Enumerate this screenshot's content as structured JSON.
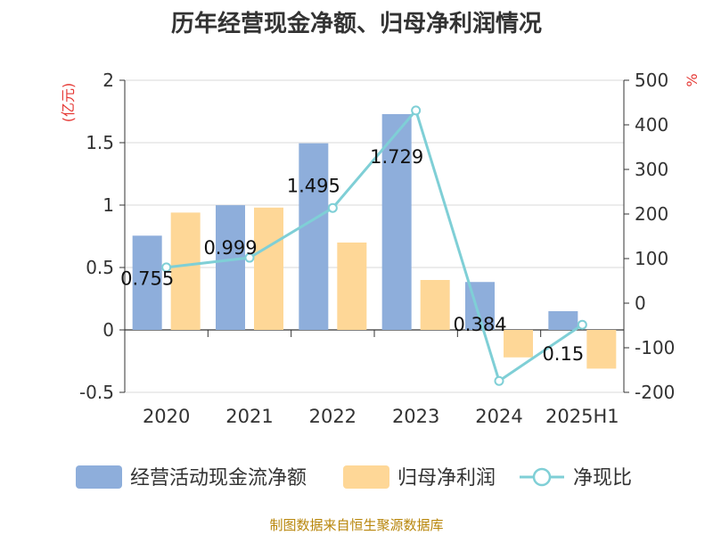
{
  "chart_data": {
    "type": "bar",
    "title": "历年经营现金净额、归母净利润情况",
    "categories": [
      "2020",
      "2021",
      "2022",
      "2023",
      "2024",
      "2025H1"
    ],
    "series": [
      {
        "name": "经营活动现金流净额",
        "type": "bar",
        "axis": "left",
        "color": "#8eaedb",
        "values": [
          0.755,
          0.999,
          1.495,
          1.729,
          0.384,
          0.15
        ],
        "labels": [
          "0.755",
          "0.999",
          "1.495",
          "1.729",
          "0.384",
          "0.15"
        ]
      },
      {
        "name": "归母净利润",
        "type": "bar",
        "axis": "left",
        "color": "#fed797",
        "values": [
          0.94,
          0.98,
          0.7,
          0.4,
          -0.22,
          -0.31
        ]
      },
      {
        "name": "净现比",
        "type": "line",
        "axis": "right",
        "color": "#7fcfd6",
        "values": [
          80.3,
          101.9,
          213.6,
          432.3,
          -174.5,
          -48.4
        ]
      }
    ],
    "y_left": {
      "unit": "(亿元)",
      "ylim": [
        -0.5,
        2
      ],
      "ticks": [
        "2",
        "1.5",
        "1",
        "0.5",
        "0",
        "-0.5"
      ],
      "tick_values": [
        2,
        1.5,
        1,
        0.5,
        0,
        -0.5
      ]
    },
    "y_right": {
      "unit": "%",
      "ylim": [
        -200,
        500
      ],
      "ticks": [
        "500",
        "400",
        "300",
        "200",
        "100",
        "0",
        "-100",
        "-200"
      ],
      "tick_values": [
        500,
        400,
        300,
        200,
        100,
        0,
        -100,
        -200
      ]
    },
    "grid": true,
    "legend_position": "bottom",
    "source": "制图数据来自恒生聚源数据库"
  }
}
